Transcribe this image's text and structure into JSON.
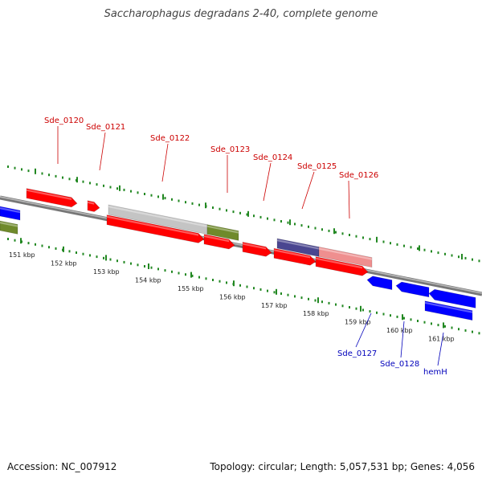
{
  "title": "Saccharophagus degradans 2-40, complete genome",
  "footer": {
    "accession": "Accession: NC_007912",
    "summary": "Topology: circular; Length: 5,057,531 bp; Genes: 4,056"
  },
  "colors": {
    "forward": "#ff0000",
    "reverse": "#0000ff",
    "tick": "#228822",
    "backbone": "#888888"
  },
  "ticks": [
    {
      "kbp": 151,
      "label": "151 kbp"
    },
    {
      "kbp": 152,
      "label": "152 kbp"
    },
    {
      "kbp": 153,
      "label": "153 kbp"
    },
    {
      "kbp": 154,
      "label": "154 kbp"
    },
    {
      "kbp": 155,
      "label": "155 kbp"
    },
    {
      "kbp": 156,
      "label": "156 kbp"
    },
    {
      "kbp": 157,
      "label": "157 kbp"
    },
    {
      "kbp": 158,
      "label": "158 kbp"
    },
    {
      "kbp": 159,
      "label": "159 kbp"
    },
    {
      "kbp": 160,
      "label": "160 kbp"
    },
    {
      "kbp": 161,
      "label": "161 kbp"
    }
  ],
  "genes": [
    {
      "name": "Sde_0120",
      "strand": "forward"
    },
    {
      "name": "Sde_0121",
      "strand": "forward"
    },
    {
      "name": "Sde_0122",
      "strand": "forward"
    },
    {
      "name": "Sde_0123",
      "strand": "forward"
    },
    {
      "name": "Sde_0124",
      "strand": "forward"
    },
    {
      "name": "Sde_0125",
      "strand": "forward"
    },
    {
      "name": "Sde_0126",
      "strand": "forward"
    },
    {
      "name": "Sde_0127",
      "strand": "reverse"
    },
    {
      "name": "Sde_0128",
      "strand": "reverse"
    },
    {
      "name": "hemH",
      "strand": "reverse"
    }
  ]
}
